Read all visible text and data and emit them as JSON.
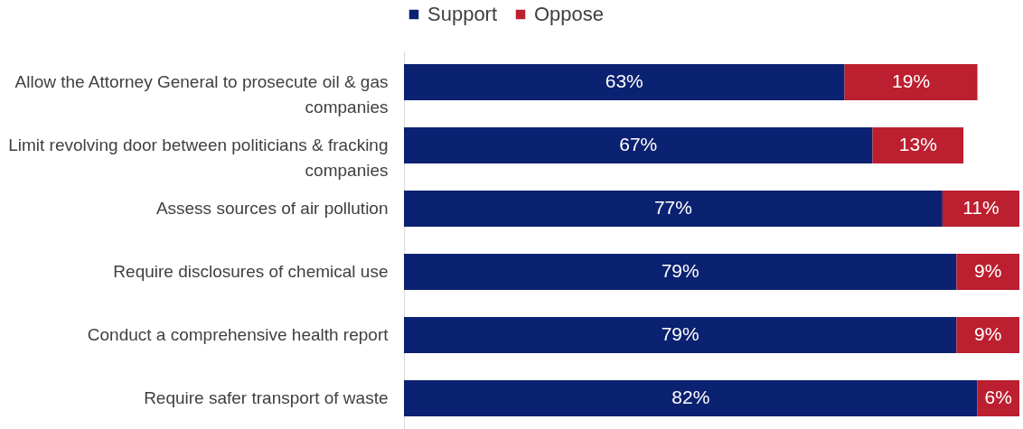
{
  "chart_data": {
    "type": "bar",
    "orientation": "horizontal",
    "stacked": true,
    "legend": "top",
    "tick_labels": "y",
    "categories": [
      "Allow the Attorney General to prosecute oil & gas companies",
      "Limit revolving door between politicians & fracking companies",
      "Assess sources of air pollution",
      "Require disclosures of chemical use",
      "Conduct a comprehensive health report",
      "Require safer transport of waste"
    ],
    "series": [
      {
        "name": "Support",
        "color": "#0b2171",
        "values": [
          63,
          67,
          77,
          79,
          79,
          82
        ],
        "value_labels": [
          "63%",
          "67%",
          "77%",
          "79%",
          "79%",
          "82%"
        ]
      },
      {
        "name": "Oppose",
        "color": "#bc1f2f",
        "values": [
          19,
          13,
          11,
          9,
          9,
          6
        ],
        "value_labels": [
          "19%",
          "13%",
          "11%",
          "9%",
          "9%",
          "6%"
        ]
      }
    ]
  }
}
